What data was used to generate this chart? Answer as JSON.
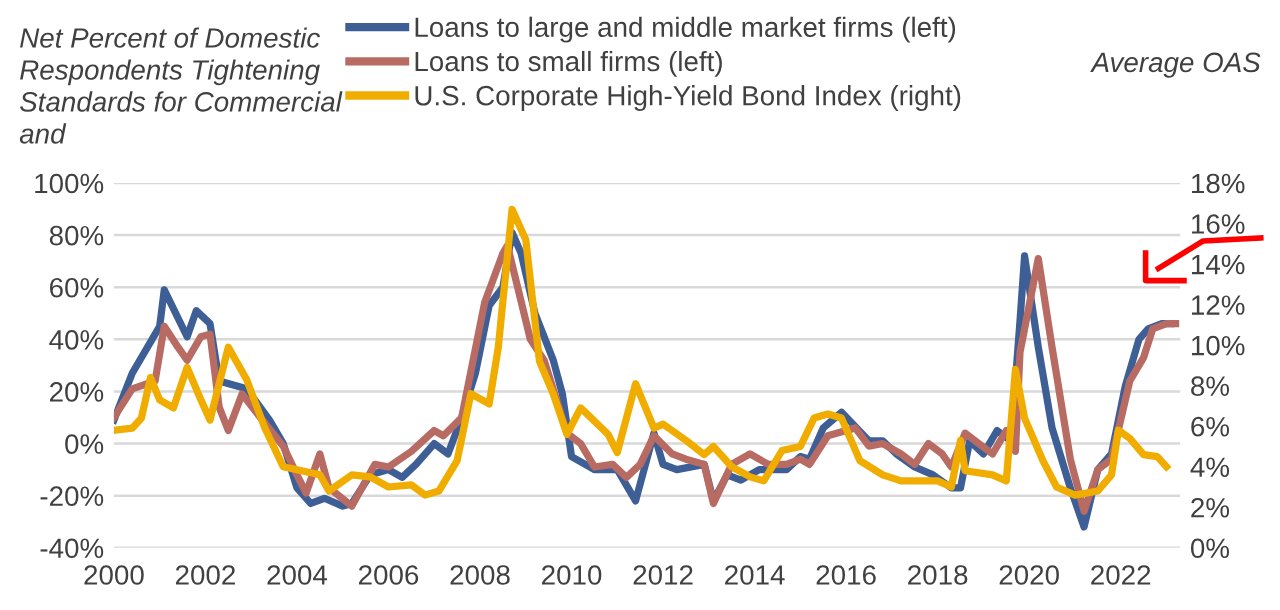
{
  "chart_data": {
    "type": "line",
    "ylabel": "Net Percent of Domestic Respondents Tightening Standards for Commercial and",
    "y2label": "Average OAS",
    "xlim": [
      2000,
      2023.3
    ],
    "xticks": [
      2000,
      2002,
      2004,
      2006,
      2008,
      2010,
      2012,
      2014,
      2016,
      2018,
      2020,
      2022
    ],
    "ylim": [
      -40,
      100
    ],
    "yticks": [
      {
        "value": -40,
        "label": "-40%"
      },
      {
        "value": -20,
        "label": "-20%"
      },
      {
        "value": 0,
        "label": "0%"
      },
      {
        "value": 20,
        "label": "20%"
      },
      {
        "value": 40,
        "label": "40%"
      },
      {
        "value": 60,
        "label": "60%"
      },
      {
        "value": 80,
        "label": "80%"
      },
      {
        "value": 100,
        "label": "100%"
      }
    ],
    "y2lim": [
      0,
      18
    ],
    "y2ticks": [
      {
        "value": 0,
        "label": "0%"
      },
      {
        "value": 2,
        "label": "2%"
      },
      {
        "value": 4,
        "label": "4%"
      },
      {
        "value": 6,
        "label": "6%"
      },
      {
        "value": 8,
        "label": "8%"
      },
      {
        "value": 10,
        "label": "10%"
      },
      {
        "value": 12,
        "label": "12%"
      },
      {
        "value": 14,
        "label": "14%"
      },
      {
        "value": 16,
        "label": "16%"
      },
      {
        "value": 18,
        "label": "18%"
      }
    ],
    "grid": "y",
    "legend": "top",
    "marker": "none",
    "line_style": "solid",
    "series": [
      {
        "name": "Loans to large and middle market firms (left)",
        "color": "#3d5f96",
        "x": [
          2000,
          2000.4,
          2001.0,
          2001.1,
          2001.6,
          2001.8,
          2002.1,
          2002.3,
          2002.9,
          2003.4,
          2003.7,
          2004.0,
          2004.3,
          2004.6,
          2005.0,
          2005.2,
          2005.6,
          2006.0,
          2006.3,
          2006.6,
          2007.0,
          2007.3,
          2007.6,
          2007.9,
          2008.2,
          2008.5,
          2008.7,
          2008.9,
          2009.2,
          2009.6,
          2009.8,
          2010.0,
          2010.3,
          2010.5,
          2011.0,
          2011.4,
          2011.8,
          2012.0,
          2012.3,
          2012.9,
          2013.1,
          2013.4,
          2013.7,
          2014.1,
          2014.7,
          2015.0,
          2015.2,
          2015.5,
          2015.9,
          2016.5,
          2016.8,
          2017.1,
          2017.5,
          2017.9,
          2018.3,
          2018.5,
          2018.7,
          2019.0,
          2019.3,
          2019.6,
          2019.8,
          2019.9,
          2020.2,
          2020.5,
          2020.9,
          2021.2,
          2021.5,
          2021.8,
          2022.1,
          2022.4,
          2022.6,
          2022.9,
          2023.1
        ],
        "values": [
          9,
          27,
          45,
          59,
          41,
          51,
          46,
          24,
          21,
          9,
          0,
          -17,
          -23,
          -21,
          -24,
          -23,
          -12,
          -10,
          -13,
          -8,
          0,
          -4,
          10,
          27,
          53,
          60,
          81,
          73,
          50,
          32,
          19,
          -5,
          -8,
          -10,
          -10,
          -22,
          4,
          -8,
          -10,
          -8,
          -22,
          -12,
          -14,
          -10,
          -10,
          -5,
          -6,
          6,
          12,
          1,
          1,
          -4,
          -9,
          -12,
          -17,
          -17,
          1,
          -4,
          5,
          1,
          47,
          72,
          37,
          6,
          -17,
          -32,
          -10,
          -4,
          22,
          40,
          44,
          46,
          46
        ]
      },
      {
        "name": "Loans to small firms (left)",
        "color": "#b86b63",
        "x": [
          2000,
          2000.4,
          2000.9,
          2001.1,
          2001.4,
          2001.6,
          2001.9,
          2002.1,
          2002.3,
          2002.5,
          2002.8,
          2003.2,
          2003.7,
          2004.0,
          2004.2,
          2004.5,
          2004.7,
          2005.2,
          2005.7,
          2006.0,
          2006.5,
          2007.0,
          2007.2,
          2007.6,
          2008.1,
          2008.5,
          2008.6,
          2009.1,
          2009.4,
          2009.9,
          2010.2,
          2010.5,
          2010.9,
          2011.2,
          2011.5,
          2011.8,
          2012.2,
          2012.5,
          2012.9,
          2013.1,
          2013.5,
          2013.9,
          2014.3,
          2014.7,
          2015.0,
          2015.2,
          2015.6,
          2016.2,
          2016.5,
          2016.8,
          2017.2,
          2017.5,
          2017.8,
          2018.1,
          2018.3,
          2018.6,
          2018.9,
          2019.2,
          2019.5,
          2019.7,
          2019.8,
          2020.2,
          2020.5,
          2020.9,
          2021.2,
          2021.5,
          2021.8,
          2022.2,
          2022.5,
          2022.7,
          2023.0,
          2023.2
        ],
        "values": [
          10,
          21,
          24,
          45,
          37,
          32,
          41,
          42,
          14,
          5,
          19,
          10,
          -1,
          -12,
          -19,
          -4,
          -17,
          -24,
          -8,
          -9,
          -3,
          5,
          3,
          10,
          54,
          73,
          76,
          40,
          32,
          4,
          0,
          -9,
          -8,
          -13,
          -8,
          3,
          -4,
          -6,
          -8,
          -23,
          -8,
          -4,
          -8,
          -8,
          -6,
          -8,
          3,
          6,
          -1,
          0,
          -4,
          -8,
          0,
          -4,
          -9,
          4,
          0,
          -4,
          5,
          -3,
          35,
          71,
          37,
          -6,
          -26,
          -10,
          -6,
          24,
          33,
          44,
          46,
          46
        ]
      },
      {
        "name": "U.S. Corporate High-Yield Bond Index (right)",
        "color": "#f0ad00",
        "axis": "y2",
        "x": [
          2000,
          2000.4,
          2000.6,
          2000.8,
          2001.0,
          2001.3,
          2001.6,
          2001.9,
          2002.1,
          2002.5,
          2002.9,
          2003.3,
          2003.7,
          2004.5,
          2004.7,
          2005.2,
          2005.6,
          2006.0,
          2006.5,
          2006.8,
          2007.1,
          2007.5,
          2007.8,
          2008.2,
          2008.4,
          2008.7,
          2009.0,
          2009.3,
          2009.6,
          2009.9,
          2010.2,
          2010.8,
          2011.0,
          2011.4,
          2011.8,
          2012.0,
          2012.5,
          2012.9,
          2013.1,
          2013.5,
          2013.9,
          2014.2,
          2014.6,
          2015.0,
          2015.3,
          2015.6,
          2015.9,
          2016.3,
          2016.8,
          2017.2,
          2017.6,
          2018.0,
          2018.3,
          2018.5,
          2018.6,
          2019.2,
          2019.5,
          2019.7,
          2019.9,
          2020.3,
          2020.6,
          2021.0,
          2021.5,
          2021.8,
          2021.95,
          2022.2,
          2022.5,
          2022.8,
          2023.0
        ],
        "values": [
          5.8,
          5.9,
          6.4,
          8.4,
          7.3,
          6.9,
          8.9,
          7.3,
          6.3,
          9.9,
          8.3,
          5.9,
          4.0,
          3.6,
          2.8,
          3.6,
          3.5,
          3.0,
          3.1,
          2.6,
          2.8,
          4.3,
          7.6,
          7.1,
          9.9,
          16.7,
          15.2,
          9.2,
          7.6,
          5.6,
          6.9,
          5.6,
          4.7,
          8.1,
          5.9,
          6.1,
          5.3,
          4.6,
          5.0,
          4.0,
          3.5,
          3.3,
          4.8,
          5.0,
          6.4,
          6.6,
          6.4,
          4.3,
          3.6,
          3.3,
          3.3,
          3.3,
          3.0,
          5.3,
          3.8,
          3.6,
          3.3,
          8.8,
          6.4,
          4.3,
          3.0,
          2.6,
          2.8,
          3.6,
          5.8,
          5.4,
          4.6,
          4.5,
          4.0
        ]
      }
    ]
  }
}
